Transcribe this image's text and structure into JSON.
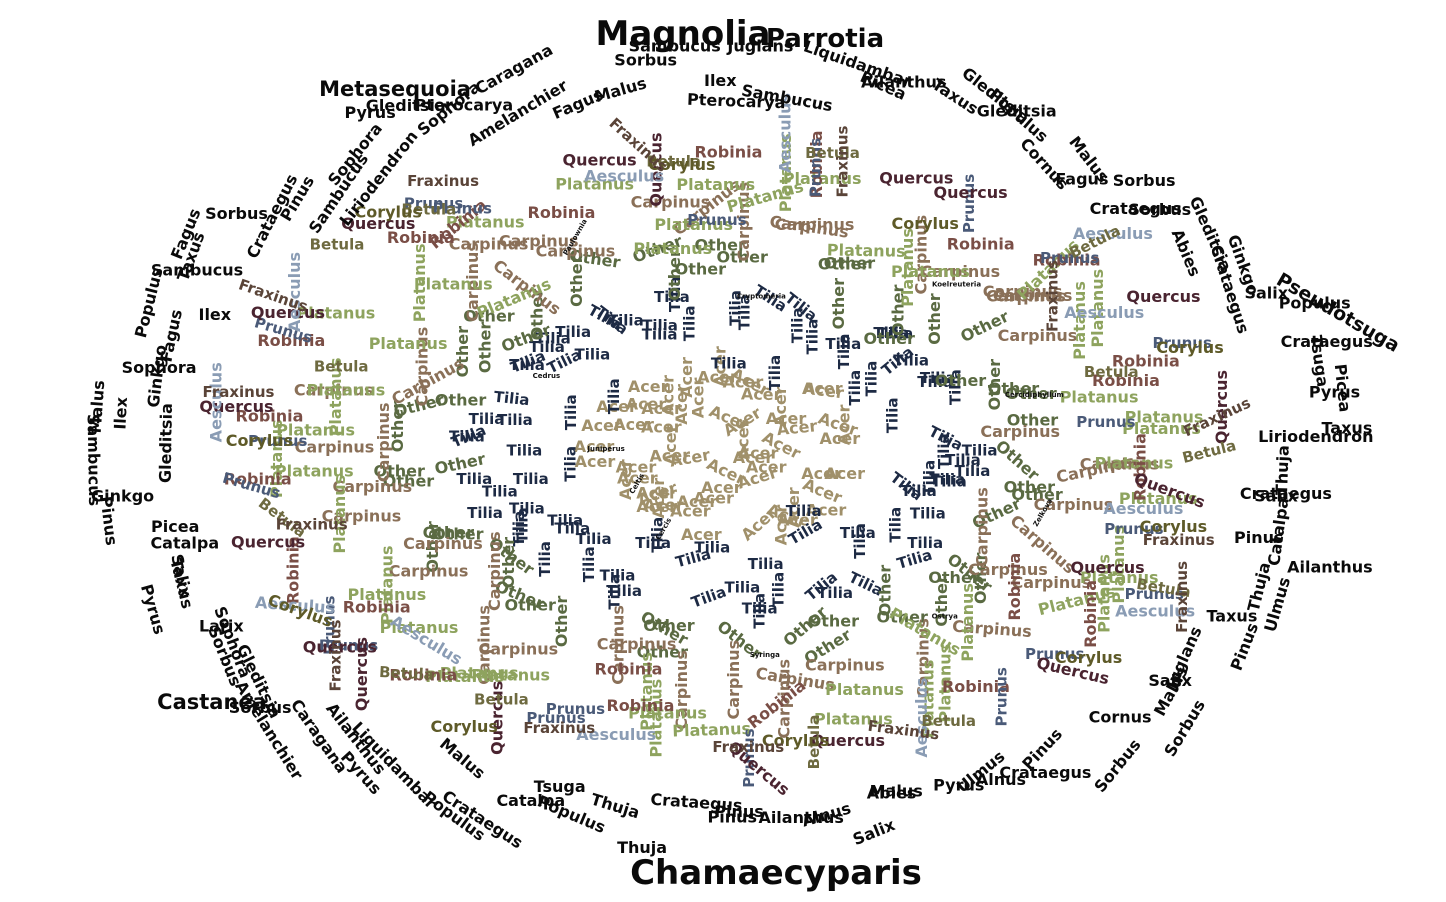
{
  "colors": {
    "acer": "#a0906a",
    "tilia": "#1d2a44",
    "other": "#5a6a42",
    "carpinus": "#8a7058",
    "platanus": "#8ea35e",
    "prunus": "#4a5a78",
    "robinia": "#7a4e46",
    "quercus": "#4a2430",
    "aesculus": "#8a9cb4",
    "betula": "#6e6a40",
    "corylus": "#5e5a28",
    "fraxinus": "#5a4438",
    "outer": "#0a0a0a"
  },
  "highlights": [
    "Magnolia",
    "Parrotia",
    "Chamaecyparis",
    "Metasequoia",
    "Castanea",
    "Pseudotsuga"
  ],
  "inner_rare": [
    "Zelkova",
    "Ostrya",
    "Syringa",
    "Cercis",
    "Celtis",
    "Juniperus",
    "Cedrus",
    "Paulownia",
    "Cryptomeria",
    "Koelreuteria",
    "Cercidiphyllum"
  ],
  "rings": [
    {
      "key": "acer",
      "name": "Acer",
      "count": 60
    },
    {
      "key": "tilia",
      "name": "Tilia",
      "count": 90
    },
    {
      "key": "other",
      "name": "Other",
      "count": 55
    },
    {
      "key": "carpinus",
      "name": "Carpinus",
      "count": 45
    },
    {
      "key": "platanus",
      "name": "Platanus",
      "count": 50
    },
    {
      "key": "robinia",
      "name": "Robinia",
      "count": 22
    },
    {
      "key": "prunus",
      "name": "Prunus",
      "count": 20
    },
    {
      "key": "quercus",
      "name": "Quercus",
      "count": 18
    },
    {
      "key": "aesculus",
      "name": "Aesculus",
      "count": 12
    },
    {
      "key": "betula",
      "name": "Betula",
      "count": 14
    },
    {
      "key": "corylus",
      "name": "Corylus",
      "count": 10
    },
    {
      "key": "fraxinus",
      "name": "Fraxinus",
      "count": 14
    }
  ],
  "outer_words": [
    "Pterocarya",
    "Juglans",
    "Sambucus",
    "Liquidambar",
    "Picea",
    "Ailanthus",
    "Taxus",
    "Gleditsia",
    "Gleditsia",
    "Populus",
    "Cornus",
    "Malus",
    "Fagus",
    "Sorbus",
    "Crataegus",
    "Sorbus",
    "Gleditsia",
    "Abies",
    "Ginkgo",
    "Crataegus",
    "Salix",
    "Populus",
    "Crataegus",
    "Tsuga",
    "Picea",
    "Pyrus",
    "Taxus",
    "Liriodendron",
    "Thuja",
    "Crataegus",
    "Salix",
    "Catalpa",
    "Pinus",
    "Ailanthus",
    "Thuja",
    "Ulmus",
    "Taxus",
    "Pinus",
    "Juglans",
    "Salix",
    "Malus",
    "Sorbus",
    "Cornus",
    "Sorbus",
    "Pinus",
    "Crataegus",
    "Alnus",
    "Ulmus",
    "Pyrus",
    "Malus",
    "Abies",
    "Salix",
    "Alnus",
    "Ailanthus",
    "Pinus",
    "Pinus",
    "Crataegus",
    "Thuja",
    "Thuja",
    "Populus",
    "Tsuga",
    "Catalpa",
    "Crataegus",
    "Populus",
    "Malus",
    "Liquidambar",
    "Pyrus",
    "Ailanthus",
    "Caragana",
    "Amelanchier",
    "Sorbus",
    "Gleditsia",
    "Sorbus",
    "Sophora",
    "Larix",
    "Pyrus",
    "Taxus",
    "Salix",
    "Catalpa",
    "Picea",
    "Pinus",
    "Ginkgo",
    "Sambucus",
    "Gleditsia",
    "Ilex",
    "Malus",
    "Ginkgo",
    "Sophora",
    "Fagus",
    "Populus",
    "Ilex",
    "Sambucus",
    "Taxus",
    "Fagus",
    "Sorbus",
    "Crataegus",
    "Pinus",
    "Sambucus",
    "Liriodendron",
    "Sophora",
    "Pyrus",
    "Gleditsia",
    "Sophora",
    "Pterocarya",
    "Amelanchier",
    "Caragana",
    "Fagus",
    "Malus",
    "Sorbus",
    "Sambucus",
    "Ilex"
  ]
}
